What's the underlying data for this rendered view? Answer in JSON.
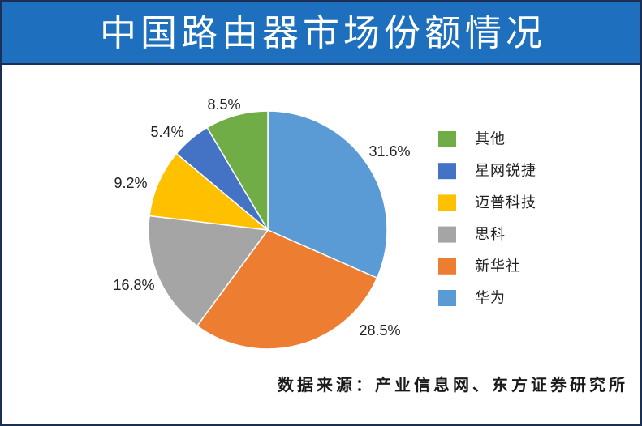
{
  "chart_data": {
    "type": "pie",
    "title": "中国路由器市场份额情况",
    "categories": [
      "华为",
      "新华社",
      "思科",
      "迈普科技",
      "星网锐捷",
      "其他"
    ],
    "values": [
      31.6,
      28.5,
      16.8,
      9.2,
      5.4,
      8.5
    ],
    "data_labels": [
      "31.6%",
      "28.5%",
      "16.8%",
      "9.2%",
      "5.4%",
      "8.5%"
    ],
    "colors": [
      "#5b9bd5",
      "#ed7d31",
      "#a5a5a5",
      "#ffc000",
      "#4472c4",
      "#70ad47"
    ],
    "legend": "right"
  },
  "source": "数据来源：产业信息网、东方证券研究所",
  "theme": {
    "banner_color": "#1e6fbe",
    "border_color": "#1b2f55"
  }
}
